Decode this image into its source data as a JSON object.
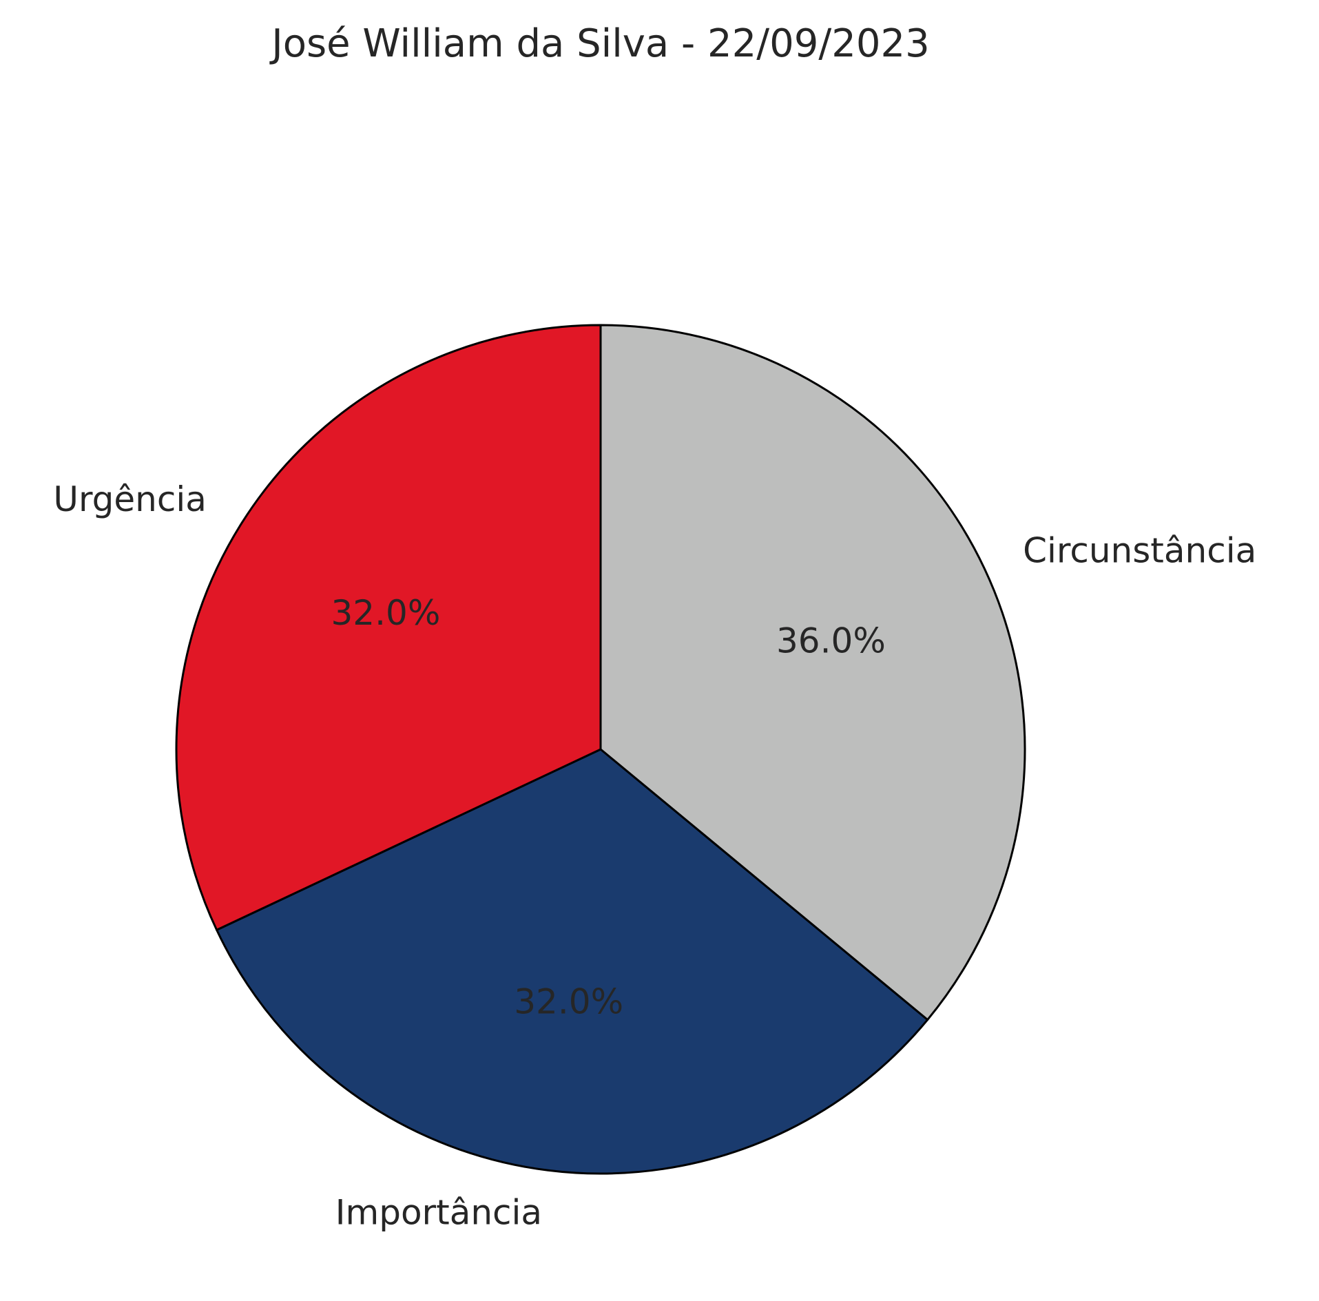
{
  "chart_data": {
    "type": "pie",
    "title": "José William da Silva - 22/09/2023",
    "categories": [
      "Circunstância",
      "Importância",
      "Urgência"
    ],
    "values": [
      36.0,
      32.0,
      32.0
    ],
    "percent_labels": [
      "36.0%",
      "32.0%",
      "32.0%"
    ],
    "colors": [
      "#bdbebd",
      "#1a3b6e",
      "#e11726"
    ],
    "start_angle_deg": 90,
    "direction": "clockwise",
    "edge_color": "#000000",
    "legend": "none"
  }
}
